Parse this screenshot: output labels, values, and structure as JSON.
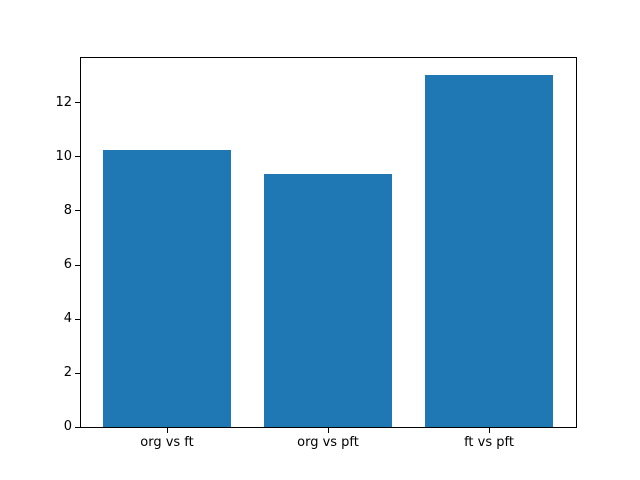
{
  "figure": {
    "background": "#ffffff",
    "spine_color": "#000000",
    "tick_color": "#000000",
    "label_color": "#000000"
  },
  "chart_data": {
    "type": "bar",
    "title": "",
    "xlabel": "",
    "ylabel": "",
    "categories": [
      "org vs ft",
      "org vs pft",
      "ft vs pft"
    ],
    "values": [
      10.27,
      9.37,
      13.02
    ],
    "bar_color": "#1f77b4",
    "bar_width": 0.8,
    "xlim": [
      -0.54,
      2.54
    ],
    "ylim": [
      0,
      13.67
    ],
    "yticks": [
      0,
      2,
      4,
      6,
      8,
      10,
      12
    ],
    "ytick_labels": [
      "0",
      "2",
      "4",
      "6",
      "8",
      "10",
      "12"
    ],
    "grid": false,
    "legend_position": "none"
  }
}
